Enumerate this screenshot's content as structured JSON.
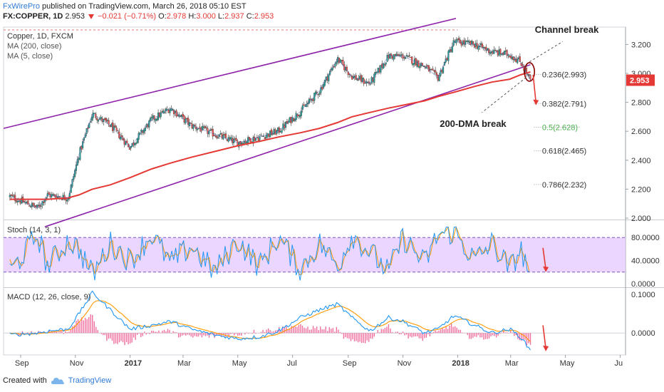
{
  "header": {
    "publisher": "FxWirePro",
    "published_text": "published on TradingView.com, March 26, 2018 05:10 EST",
    "symbol": "FX:COPPER, 1D",
    "last": "2.953",
    "change": "−0.021 (−0.71%)",
    "ohlc": {
      "o_label": "O:",
      "o": "2.978",
      "h_label": "H:",
      "h": "3.000",
      "l_label": "L:",
      "l": "2.937",
      "c_label": "C:",
      "c": "2.953"
    }
  },
  "footer": {
    "created_with": "Created with",
    "brand": "TradingView"
  },
  "colors": {
    "up": "#26a69a",
    "down": "#ef5350",
    "channel": "#8e24aa",
    "ma200": "#e53935",
    "ma5": "#5b6bbf",
    "stoch_k": "#2196f3",
    "stoch_d": "#ff9800",
    "stoch_band": "#e5ccff",
    "macd": "#2196f3",
    "signal": "#ff9800",
    "hist": "#ef6f9e",
    "arrow": "#e53935",
    "price_tag": "#e53935"
  },
  "chart_data": [
    {
      "type": "line",
      "title": "Copper, 1D, FXCM",
      "legend": [
        "MA (200, close)",
        "MA (5, close)"
      ],
      "x_ticks": [
        "Sep",
        "Nov",
        "2017",
        "Mar",
        "May",
        "Jul",
        "Sep",
        "Nov",
        "2018",
        "Mar",
        "May",
        "Ju"
      ],
      "y_ticks": [
        "3.200",
        "3.000",
        "2.800",
        "2.600",
        "2.400",
        "2.200",
        "2.000"
      ],
      "ylim": [
        2.0,
        3.32
      ],
      "last_price_tag": "2.953",
      "dates": [
        "2016-08-20",
        "2016-09-20",
        "2016-10-01",
        "2016-10-24",
        "2016-11-05",
        "2016-11-20",
        "2016-12-10",
        "2017-01-01",
        "2017-01-25",
        "2017-02-15",
        "2017-03-10",
        "2017-04-05",
        "2017-05-01",
        "2017-05-25",
        "2017-06-15",
        "2017-07-10",
        "2017-07-31",
        "2017-08-20",
        "2017-09-05",
        "2017-09-25",
        "2017-10-16",
        "2017-11-01",
        "2017-11-25",
        "2017-12-10",
        "2017-12-28",
        "2018-01-20",
        "2018-02-08",
        "2018-02-28",
        "2018-03-12",
        "2018-03-23"
      ],
      "series": [
        {
          "name": "Copper",
          "values": [
            2.15,
            2.07,
            2.16,
            2.14,
            2.44,
            2.72,
            2.64,
            2.49,
            2.68,
            2.76,
            2.64,
            2.58,
            2.52,
            2.56,
            2.6,
            2.74,
            2.88,
            3.1,
            2.98,
            2.93,
            3.12,
            3.12,
            3.05,
            2.97,
            3.22,
            3.2,
            3.15,
            3.13,
            3.08,
            2.953
          ]
        },
        {
          "name": "MA (200, close)",
          "values": [
            2.13,
            2.13,
            2.13,
            2.14,
            2.16,
            2.2,
            2.23,
            2.28,
            2.34,
            2.38,
            2.42,
            2.46,
            2.5,
            2.53,
            2.56,
            2.59,
            2.62,
            2.66,
            2.7,
            2.73,
            2.76,
            2.78,
            2.81,
            2.84,
            2.87,
            2.91,
            2.94,
            2.96,
            2.99,
            3.01
          ]
        }
      ],
      "fib_levels": [
        {
          "ratio": "0.236",
          "label": "0.236(2.993)",
          "value": 2.993
        },
        {
          "ratio": "0.382",
          "label": "0.382(2.791)",
          "value": 2.791
        },
        {
          "ratio": "0.5",
          "label": "0.5(2.628)",
          "value": 2.628
        },
        {
          "ratio": "0.618",
          "label": "0.618(2.465)",
          "value": 2.465
        },
        {
          "ratio": "0.786",
          "label": "0.786(2.232)",
          "value": 2.232
        }
      ],
      "annotations": [
        "Channel break",
        "200-DMA break"
      ]
    },
    {
      "type": "line",
      "title": "Stoch (14, 3, 1)",
      "y_ticks": [
        "80.0000",
        "40.0000",
        "0.0000"
      ],
      "ylim": [
        0,
        100
      ],
      "bands": [
        20,
        80
      ],
      "series": [
        {
          "name": "%K",
          "values": [
            20,
            85,
            30,
            75,
            60,
            15,
            70,
            40,
            85,
            35,
            65,
            20,
            75,
            30,
            80,
            25,
            70,
            30,
            85,
            55,
            20,
            80,
            35,
            85,
            90,
            40,
            70,
            25,
            60,
            15
          ]
        }
      ]
    },
    {
      "type": "line",
      "title": "MACD (12, 26, close, 9)",
      "y_ticks": [
        "0.1000",
        "0.0000"
      ],
      "ylim": [
        -0.055,
        0.115
      ],
      "series": [
        {
          "name": "MACD",
          "values": [
            -0.005,
            0.0,
            0.005,
            0.01,
            0.05,
            0.105,
            0.06,
            0.01,
            0.02,
            0.03,
            0.01,
            -0.005,
            -0.015,
            -0.01,
            0.005,
            0.04,
            0.06,
            0.075,
            0.04,
            0.005,
            0.04,
            0.03,
            0.0,
            0.01,
            0.045,
            0.02,
            0.0,
            0.01,
            -0.01,
            -0.045
          ]
        }
      ]
    }
  ]
}
